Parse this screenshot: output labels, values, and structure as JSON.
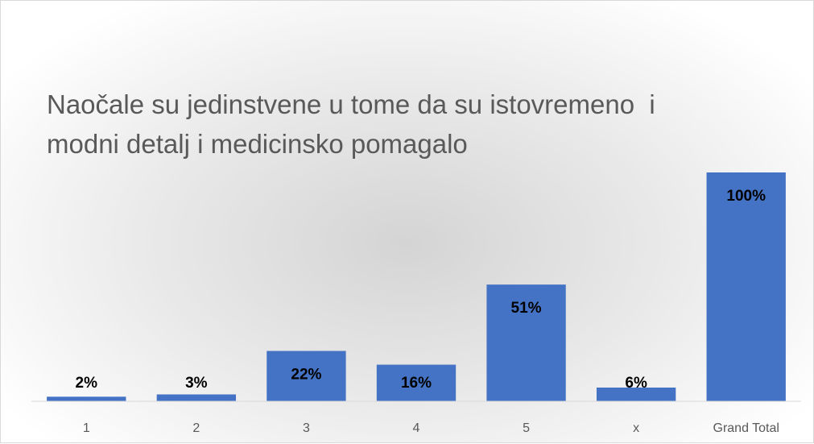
{
  "chart_data": {
    "type": "bar",
    "title": "Naočale su jedinstvene u tome da su istovremeno  i modni detalj i medicinsko pomagalo",
    "categories": [
      "1",
      "2",
      "3",
      "4",
      "5",
      "x",
      "Grand Total"
    ],
    "values": [
      2,
      3,
      22,
      16,
      51,
      6,
      100
    ],
    "value_labels": [
      "2%",
      "3%",
      "22%",
      "16%",
      "51%",
      "6%",
      "100%"
    ],
    "color": "#4472c4"
  }
}
